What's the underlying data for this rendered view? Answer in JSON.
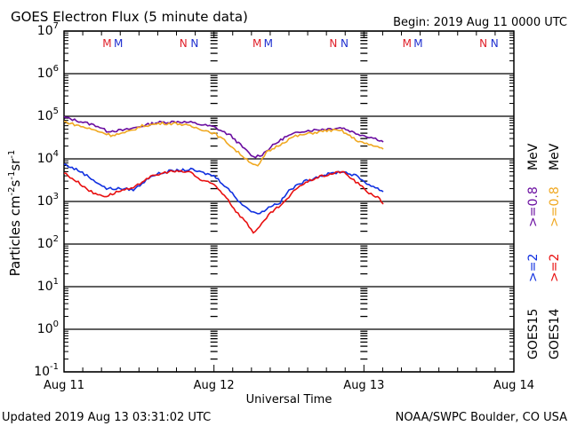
{
  "chart_data": {
    "type": "line",
    "title": "GOES Electron Flux (5 minute data)",
    "begin_label": "Begin: 2019 Aug 11 0000 UTC",
    "xlabel": "Universal Time",
    "ylabel": "Particles cm-2s-1sr-1",
    "ylabel_parts": {
      "base": "Particles cm",
      "e1": "-2",
      "s": "s",
      "e2": "-1",
      "sr": "sr",
      "e3": "-1"
    },
    "x_unit": "hours since 2019 Aug 11 00:00 UTC",
    "xlim": [
      0,
      72
    ],
    "ylim": [
      0.1,
      10000000
    ],
    "y_scale": "log",
    "y_ticks": [
      {
        "base": "10",
        "exp": "7",
        "value": 10000000.0
      },
      {
        "base": "10",
        "exp": "6",
        "value": 1000000.0
      },
      {
        "base": "10",
        "exp": "5",
        "value": 100000.0
      },
      {
        "base": "10",
        "exp": "4",
        "value": 10000.0
      },
      {
        "base": "10",
        "exp": "3",
        "value": 1000.0
      },
      {
        "base": "10",
        "exp": "2",
        "value": 100.0
      },
      {
        "base": "10",
        "exp": "1",
        "value": 10.0
      },
      {
        "base": "10",
        "exp": "0",
        "value": 1.0
      },
      {
        "base": "10",
        "exp": "-1",
        "value": 0.1
      }
    ],
    "x_ticks": [
      {
        "label": "Aug 11",
        "hour": 0
      },
      {
        "label": "Aug 12",
        "hour": 24
      },
      {
        "label": "Aug 13",
        "hour": 48
      },
      {
        "label": "Aug 14",
        "hour": 72
      }
    ],
    "threshold": {
      "value": 1000,
      "style": "dashed"
    },
    "markers": [
      {
        "label": "M",
        "color": "#e0202a",
        "hour": 6.9
      },
      {
        "label": "M",
        "color": "#2030d0",
        "hour": 8.7
      },
      {
        "label": "N",
        "color": "#e0202a",
        "hour": 19.1
      },
      {
        "label": "N",
        "color": "#2030d0",
        "hour": 20.9
      },
      {
        "label": "M",
        "color": "#e0202a",
        "hour": 30.9
      },
      {
        "label": "M",
        "color": "#2030d0",
        "hour": 32.7
      },
      {
        "label": "N",
        "color": "#e0202a",
        "hour": 43.1
      },
      {
        "label": "N",
        "color": "#2030d0",
        "hour": 44.9
      },
      {
        "label": "M",
        "color": "#e0202a",
        "hour": 54.9
      },
      {
        "label": "M",
        "color": "#2030d0",
        "hour": 56.7
      },
      {
        "label": "N",
        "color": "#e0202a",
        "hour": 67.1
      },
      {
        "label": "N",
        "color": "#2030d0",
        "hour": 68.9
      }
    ],
    "series": [
      {
        "name": "GOES15 >=0.8 MeV",
        "color": "#6a0da0",
        "points": [
          [
            0,
            95000.0
          ],
          [
            5.4,
            59000.0
          ],
          [
            6.8,
            45000.0
          ],
          [
            9.7,
            47000.0
          ],
          [
            12.5,
            59000.0
          ],
          [
            14.7,
            71000.0
          ],
          [
            18.2,
            75000.0
          ],
          [
            20.3,
            71000.0
          ],
          [
            24,
            56000.0
          ],
          [
            26.7,
            35000.0
          ],
          [
            28.9,
            17000.0
          ],
          [
            30.3,
            11000.0
          ],
          [
            31.7,
            12600.0
          ],
          [
            33.1,
            19000.0
          ],
          [
            35.3,
            32000.0
          ],
          [
            38.1,
            45000.0
          ],
          [
            41,
            49000.0
          ],
          [
            44.5,
            54000.0
          ],
          [
            46.7,
            40000.0
          ],
          [
            48.8,
            33000.0
          ],
          [
            50.2,
            29000.0
          ],
          [
            51.1,
            25000.0
          ]
        ]
      },
      {
        "name": "GOES14 >=0.8 MeV",
        "color": "#f0a820",
        "points": [
          [
            0,
            75000.0
          ],
          [
            5.4,
            45000.0
          ],
          [
            7.5,
            36000.0
          ],
          [
            9.7,
            40000.0
          ],
          [
            12.5,
            59000.0
          ],
          [
            15.4,
            68000.0
          ],
          [
            18.2,
            68000.0
          ],
          [
            21.8,
            51000.0
          ],
          [
            24,
            40000.0
          ],
          [
            26,
            25000.0
          ],
          [
            27.9,
            14000.0
          ],
          [
            29.9,
            8300.0
          ],
          [
            31,
            6500.0
          ],
          [
            32.4,
            14000.0
          ],
          [
            34.6,
            22000.0
          ],
          [
            36.7,
            33000.0
          ],
          [
            39.5,
            40000.0
          ],
          [
            42.4,
            47000.0
          ],
          [
            44.5,
            45000.0
          ],
          [
            46.7,
            28000.0
          ],
          [
            48.8,
            21000.0
          ],
          [
            50.2,
            19500.0
          ],
          [
            51.1,
            17000.0
          ]
        ]
      },
      {
        "name": "GOES15 >=2 MeV",
        "color": "#1030e0",
        "points": [
          [
            0,
            7500.0
          ],
          [
            2.6,
            5100.0
          ],
          [
            4.7,
            3200.0
          ],
          [
            6.8,
            2000.0
          ],
          [
            9,
            2000.0
          ],
          [
            11.1,
            1900.0
          ],
          [
            12.5,
            2600.0
          ],
          [
            13.9,
            4000.0
          ],
          [
            16.8,
            5100.0
          ],
          [
            20.3,
            5600.0
          ],
          [
            24,
            4000.0
          ],
          [
            26,
            2200.0
          ],
          [
            28.2,
            950.0
          ],
          [
            30.3,
            540.0
          ],
          [
            31.7,
            560.0
          ],
          [
            33.1,
            790.0
          ],
          [
            34.6,
            950.0
          ],
          [
            36,
            1800.0
          ],
          [
            38.1,
            2800.0
          ],
          [
            41,
            4000.0
          ],
          [
            44.5,
            5100.0
          ],
          [
            46.7,
            4000.0
          ],
          [
            48.8,
            2500.0
          ],
          [
            50.2,
            2000.0
          ],
          [
            51.1,
            1700.0
          ]
        ]
      },
      {
        "name": "GOES14 >=2 MeV",
        "color": "#e81010",
        "points": [
          [
            0,
            4700.0
          ],
          [
            2.6,
            2600.0
          ],
          [
            4.7,
            1550.0
          ],
          [
            6.8,
            1330.0
          ],
          [
            9,
            1800.0
          ],
          [
            11.1,
            2000.0
          ],
          [
            13.2,
            3500.0
          ],
          [
            16.8,
            5100.0
          ],
          [
            20.3,
            4900.0
          ],
          [
            21.8,
            3200.0
          ],
          [
            24,
            2500.0
          ],
          [
            26,
            1260.0
          ],
          [
            27.5,
            590.0
          ],
          [
            28.9,
            360.0
          ],
          [
            30.3,
            190.0
          ],
          [
            31.3,
            250.0
          ],
          [
            33.1,
            540.0
          ],
          [
            35.3,
            950.0
          ],
          [
            37.4,
            2200.0
          ],
          [
            40.3,
            3600.0
          ],
          [
            44.5,
            5100.0
          ],
          [
            46.7,
            2900.0
          ],
          [
            48.8,
            1600.0
          ],
          [
            50.2,
            1260.0
          ],
          [
            51.1,
            870.0
          ]
        ]
      }
    ],
    "legend": {
      "placement": "right",
      "columns": [
        {
          "satellite": "GOES15",
          "e2_label": ">=2",
          "e2_color": "#1030e0",
          "e08_label": ">=0.8",
          "e08_color": "#6a0da0",
          "unit": "MeV"
        },
        {
          "satellite": "GOES14",
          "e2_label": ">=2",
          "e2_color": "#e81010",
          "e08_label": ">=0.8",
          "e08_color": "#f0a820",
          "unit": "MeV"
        }
      ]
    },
    "grid": true
  },
  "footer": {
    "updated": "Updated 2019 Aug 13 03:31:02 UTC",
    "source": "NOAA/SWPC Boulder, CO USA"
  }
}
